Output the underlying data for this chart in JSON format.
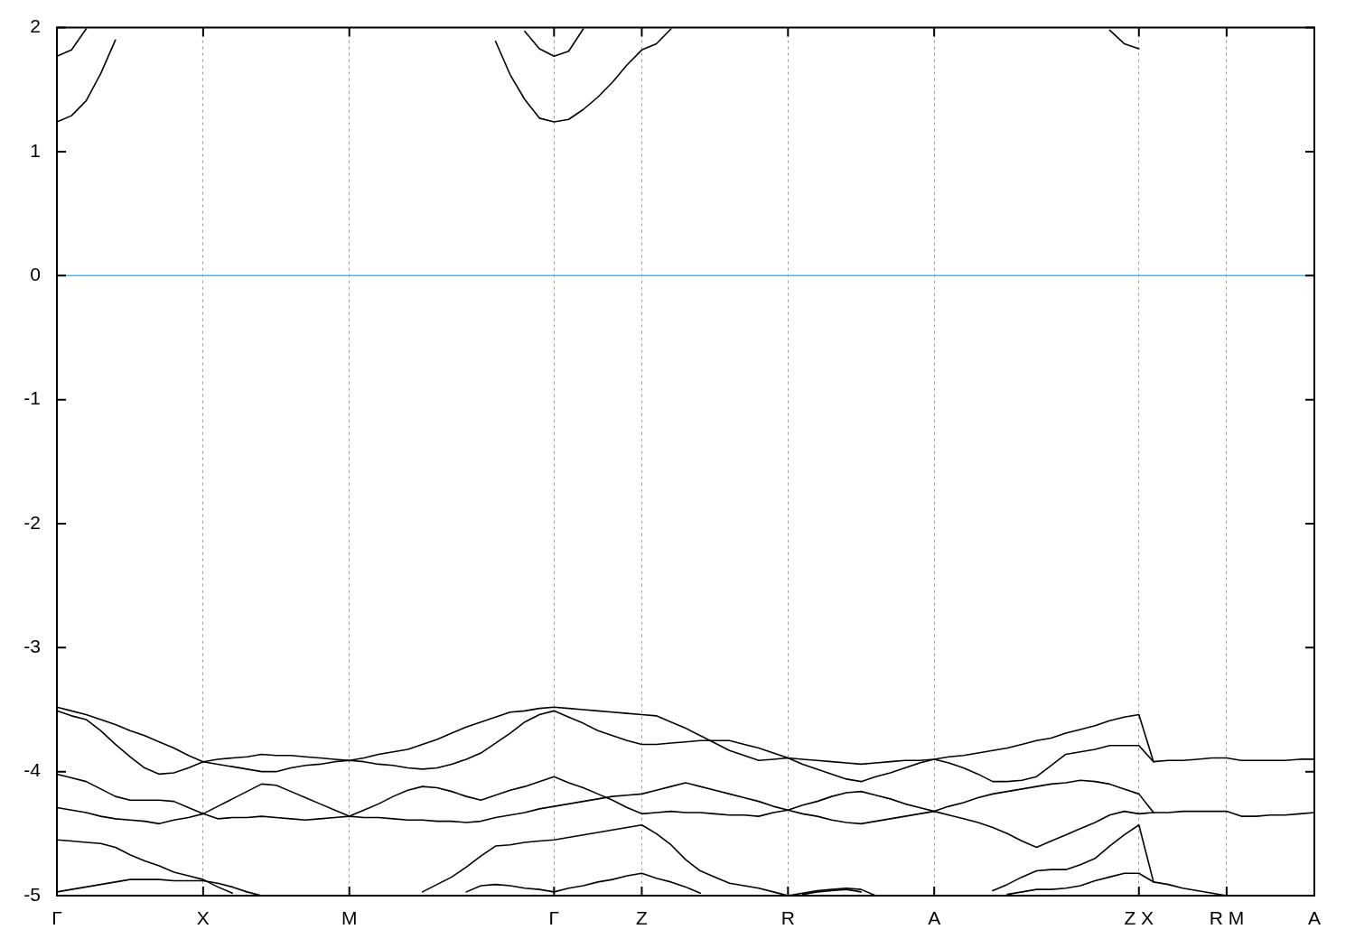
{
  "chart_data": {
    "type": "line",
    "categories": [
      "Γ",
      null,
      null,
      null,
      null,
      null,
      null,
      null,
      null,
      null,
      "X",
      null,
      null,
      null,
      null,
      null,
      null,
      null,
      null,
      null,
      "M",
      null,
      null,
      null,
      null,
      null,
      null,
      null,
      null,
      null,
      null,
      null,
      null,
      null,
      "Γ",
      null,
      null,
      null,
      null,
      null,
      "Z",
      null,
      null,
      null,
      null,
      null,
      null,
      null,
      null,
      null,
      "R",
      null,
      null,
      null,
      null,
      null,
      null,
      null,
      null,
      null,
      "A",
      null,
      null,
      null,
      null,
      null,
      null,
      null,
      null,
      null,
      null,
      null,
      null,
      null,
      "Z X",
      null,
      null,
      null,
      null,
      null,
      "R M",
      null,
      null,
      null,
      null,
      null,
      "A"
    ],
    "ylim": [
      -5,
      2
    ],
    "yticks": [
      -5,
      -4,
      -3,
      -2,
      -1,
      0,
      1,
      2
    ],
    "grid": "x",
    "ref_lines": [
      {
        "axis": "y",
        "value": 0,
        "color": "#56b4e9"
      }
    ],
    "series": [
      {
        "color": "#000000",
        "values": [
          -3.48,
          -3.51,
          -3.54,
          -3.58,
          -3.62,
          -3.67,
          -3.71,
          -3.76,
          -3.81,
          -3.87,
          -3.92,
          -3.94,
          -3.96,
          -3.98,
          -4.0,
          -4.0,
          -3.97,
          -3.95,
          -3.94,
          -3.92,
          -3.91,
          -3.92,
          -3.94,
          -3.95,
          -3.97,
          -3.98,
          -3.97,
          -3.94,
          -3.9,
          -3.85,
          -3.77,
          -3.69,
          -3.6,
          -3.54,
          -3.51,
          -3.56,
          -3.61,
          -3.67,
          -3.71,
          -3.75,
          -3.78,
          -3.78,
          -3.77,
          -3.76,
          -3.75,
          -3.75,
          -3.75,
          -3.78,
          -3.81,
          -3.85,
          -3.89,
          -3.94,
          -3.98,
          -4.02,
          -4.06,
          -4.08,
          -4.04,
          -4.01,
          -3.97,
          -3.93,
          -3.9,
          -3.93,
          -3.97,
          -4.02,
          -4.08,
          -4.08,
          -4.07,
          -4.04,
          -3.95,
          -3.86,
          -3.84,
          -3.82,
          -3.79,
          -3.79,
          -3.79,
          -3.92,
          -3.91,
          -3.91,
          -3.9,
          -3.89,
          -3.89,
          -3.91,
          -3.91,
          -3.91,
          -3.91,
          -3.9,
          -3.9
        ]
      },
      {
        "color": "#000000",
        "values": [
          -3.51,
          -3.55,
          -3.58,
          -3.67,
          -3.78,
          -3.88,
          -3.97,
          -4.02,
          -4.01,
          -3.97,
          -3.92,
          -3.9,
          -3.89,
          -3.88,
          -3.86,
          -3.87,
          -3.87,
          -3.88,
          -3.89,
          -3.9,
          -3.91,
          -3.89,
          -3.86,
          -3.84,
          -3.82,
          -3.78,
          -3.74,
          -3.69,
          -3.64,
          -3.6,
          -3.56,
          -3.52,
          -3.51,
          -3.49,
          -3.48,
          -3.49,
          -3.5,
          -3.51,
          -3.52,
          -3.53,
          -3.54,
          -3.55,
          -3.6,
          -3.65,
          -3.71,
          -3.77,
          -3.83,
          -3.87,
          -3.91,
          -3.9,
          -3.89,
          -3.9,
          -3.91,
          -3.92,
          -3.93,
          -3.94,
          -3.93,
          -3.92,
          -3.91,
          -3.91,
          -3.9,
          -3.88,
          -3.87,
          -3.85,
          -3.83,
          -3.81,
          -3.78,
          -3.75,
          -3.73,
          -3.69,
          -3.66,
          -3.63,
          -3.59,
          -3.56,
          -3.54,
          -3.92,
          null,
          null,
          null,
          null,
          null,
          null,
          null,
          null,
          null,
          null,
          null
        ]
      },
      {
        "color": "#000000",
        "values": [
          -4.02,
          -4.05,
          -4.08,
          -4.14,
          -4.2,
          -4.23,
          -4.23,
          -4.23,
          -4.24,
          -4.29,
          -4.34,
          -4.38,
          -4.37,
          -4.37,
          -4.36,
          -4.37,
          -4.38,
          -4.39,
          -4.38,
          -4.37,
          -4.36,
          -4.31,
          -4.26,
          -4.2,
          -4.15,
          -4.12,
          -4.13,
          -4.16,
          -4.2,
          -4.23,
          -4.19,
          -4.15,
          -4.12,
          -4.08,
          -4.04,
          -4.09,
          -4.13,
          -4.18,
          -4.23,
          -4.29,
          -4.34,
          -4.33,
          -4.32,
          -4.33,
          -4.33,
          -4.34,
          -4.35,
          -4.35,
          -4.36,
          -4.33,
          -4.31,
          -4.34,
          -4.36,
          -4.39,
          -4.41,
          -4.42,
          -4.4,
          -4.38,
          -4.36,
          -4.34,
          -4.32,
          -4.35,
          -4.38,
          -4.41,
          -4.45,
          -4.5,
          -4.56,
          -4.61,
          -4.56,
          -4.51,
          -4.46,
          -4.41,
          -4.35,
          -4.32,
          -4.34,
          -4.33,
          -4.33,
          -4.32,
          -4.32,
          -4.32,
          -4.32,
          -4.36,
          -4.36,
          -4.35,
          -4.35,
          -4.34,
          -4.33
        ]
      },
      {
        "color": "#000000",
        "values": [
          -4.29,
          -4.31,
          -4.33,
          -4.36,
          -4.38,
          -4.39,
          -4.4,
          -4.42,
          -4.39,
          -4.37,
          -4.34,
          -4.28,
          -4.22,
          -4.16,
          -4.1,
          -4.11,
          -4.16,
          -4.21,
          -4.26,
          -4.31,
          -4.36,
          -4.37,
          -4.37,
          -4.38,
          -4.39,
          -4.39,
          -4.4,
          -4.4,
          -4.41,
          -4.4,
          -4.37,
          -4.35,
          -4.33,
          -4.3,
          -4.28,
          -4.26,
          -4.24,
          -4.22,
          -4.2,
          -4.19,
          -4.18,
          -4.15,
          -4.12,
          -4.09,
          -4.12,
          -4.15,
          -4.18,
          -4.21,
          -4.24,
          -4.28,
          -4.31,
          -4.27,
          -4.24,
          -4.2,
          -4.17,
          -4.16,
          -4.19,
          -4.22,
          -4.26,
          -4.29,
          -4.32,
          -4.28,
          -4.25,
          -4.21,
          -4.18,
          -4.16,
          -4.14,
          -4.12,
          -4.1,
          -4.09,
          -4.07,
          -4.08,
          -4.1,
          -4.14,
          -4.18,
          -4.33,
          null,
          null,
          null,
          null,
          null,
          null,
          null,
          null,
          null,
          null,
          null
        ]
      },
      {
        "color": "#000000",
        "values": [
          -4.55,
          -4.56,
          -4.57,
          -4.58,
          -4.61,
          -4.67,
          -4.72,
          -4.76,
          -4.81,
          -4.84,
          -4.87,
          -4.93,
          -4.98,
          null,
          null,
          null,
          null,
          null,
          null,
          null,
          null,
          null,
          null,
          null,
          null,
          null,
          null,
          null,
          null,
          null,
          null,
          null,
          null,
          null,
          null,
          null,
          null,
          null,
          null,
          null,
          null,
          null,
          null,
          null,
          null,
          null,
          null,
          null,
          null,
          null,
          null,
          null,
          null,
          null,
          null,
          null,
          null,
          null,
          null,
          null,
          null,
          null,
          null,
          null,
          null,
          null,
          null,
          null,
          null,
          null,
          null,
          null,
          null,
          null,
          null,
          null,
          null,
          null,
          null,
          null,
          null,
          null,
          null,
          null,
          null,
          null,
          null
        ]
      },
      {
        "color": "#000000",
        "values": [
          -4.97,
          -4.95,
          -4.93,
          -4.91,
          -4.89,
          -4.87,
          -4.87,
          -4.87,
          -4.88,
          -4.88,
          -4.88,
          -4.9,
          -4.93,
          -4.97,
          -5,
          null,
          null,
          null,
          null,
          null,
          null,
          null,
          null,
          null,
          null,
          null,
          null,
          null,
          null,
          null,
          null,
          null,
          null,
          null,
          null,
          null,
          null,
          null,
          null,
          null,
          null,
          null,
          null,
          null,
          null,
          null,
          null,
          null,
          null,
          null,
          null,
          null,
          null,
          null,
          null,
          null,
          null,
          null,
          null,
          null,
          null,
          null,
          null,
          null,
          null,
          null,
          null,
          null,
          null,
          null,
          null,
          null,
          null,
          null,
          null,
          null,
          null,
          null,
          null,
          null,
          null,
          null,
          null,
          null,
          null,
          null,
          null
        ]
      },
      {
        "color": "#000000",
        "values": [
          null,
          null,
          null,
          null,
          null,
          null,
          null,
          null,
          null,
          null,
          null,
          null,
          null,
          null,
          null,
          null,
          null,
          null,
          null,
          null,
          null,
          null,
          null,
          null,
          null,
          -4.97,
          -4.91,
          -4.85,
          -4.77,
          -4.68,
          -4.6,
          -4.59,
          -4.57,
          -4.56,
          -4.55,
          -4.53,
          -4.51,
          -4.49,
          -4.47,
          -4.45,
          -4.43,
          -4.5,
          -4.59,
          -4.71,
          -4.8,
          -4.85,
          -4.9,
          -4.92,
          -4.94,
          -4.97,
          -5,
          -4.98,
          -4.96,
          -4.95,
          -4.94,
          -4.95,
          -5,
          null,
          null,
          null,
          null,
          null,
          null,
          null,
          null,
          null,
          null,
          null,
          null,
          null,
          null,
          null,
          null,
          null,
          null,
          null,
          null,
          null,
          null,
          null,
          null,
          null,
          null,
          null,
          null,
          null,
          null
        ]
      },
      {
        "color": "#000000",
        "values": [
          null,
          null,
          null,
          null,
          null,
          null,
          null,
          null,
          null,
          null,
          null,
          null,
          null,
          null,
          null,
          null,
          null,
          null,
          null,
          null,
          null,
          null,
          null,
          null,
          null,
          null,
          null,
          null,
          -4.97,
          -4.92,
          -4.91,
          -4.92,
          -4.94,
          -4.95,
          -4.97,
          -4.94,
          -4.92,
          -4.89,
          -4.87,
          -4.84,
          -4.82,
          -4.86,
          -4.89,
          -4.93,
          -4.98,
          null,
          null,
          null,
          null,
          null,
          null,
          null,
          null,
          null,
          null,
          null,
          null,
          null,
          null,
          null,
          null,
          null,
          null,
          null,
          null,
          null,
          null,
          null,
          null,
          null,
          null,
          null,
          null,
          null,
          null,
          null,
          null,
          null,
          null,
          null,
          null,
          null,
          null,
          null,
          null,
          null,
          null
        ]
      },
      {
        "color": "#000000",
        "values": [
          null,
          null,
          null,
          null,
          null,
          null,
          null,
          null,
          null,
          null,
          null,
          null,
          null,
          null,
          null,
          null,
          null,
          null,
          null,
          null,
          null,
          null,
          null,
          null,
          null,
          null,
          null,
          null,
          null,
          null,
          null,
          null,
          null,
          null,
          null,
          null,
          null,
          null,
          null,
          null,
          null,
          null,
          null,
          null,
          null,
          null,
          null,
          null,
          null,
          null,
          null,
          -4.99,
          -4.97,
          -4.96,
          -4.95,
          -4.97,
          null,
          null,
          null,
          null,
          null,
          null,
          null,
          null,
          null,
          null,
          null,
          null,
          null,
          null,
          null,
          null,
          null,
          null,
          null,
          null,
          null,
          null,
          null,
          null,
          null,
          null,
          null,
          null,
          null,
          null,
          null
        ]
      },
      {
        "color": "#000000",
        "values": [
          null,
          null,
          null,
          null,
          null,
          null,
          null,
          null,
          null,
          null,
          null,
          null,
          null,
          null,
          null,
          null,
          null,
          null,
          null,
          null,
          null,
          null,
          null,
          null,
          null,
          null,
          null,
          null,
          null,
          null,
          null,
          null,
          null,
          null,
          null,
          null,
          null,
          null,
          null,
          null,
          null,
          null,
          null,
          null,
          null,
          null,
          null,
          null,
          null,
          null,
          null,
          null,
          null,
          null,
          null,
          null,
          null,
          null,
          null,
          null,
          null,
          null,
          null,
          null,
          -4.96,
          -4.91,
          -4.85,
          -4.8,
          -4.79,
          -4.79,
          -4.75,
          -4.7,
          -4.6,
          -4.51,
          -4.43,
          -4.89,
          -4.91,
          -4.94,
          -4.96,
          -4.98,
          -5,
          null,
          null,
          null,
          null,
          null,
          null
        ]
      },
      {
        "color": "#000000",
        "values": [
          null,
          null,
          null,
          null,
          null,
          null,
          null,
          null,
          null,
          null,
          null,
          null,
          null,
          null,
          null,
          null,
          null,
          null,
          null,
          null,
          null,
          null,
          null,
          null,
          null,
          null,
          null,
          null,
          null,
          null,
          null,
          null,
          null,
          null,
          null,
          null,
          null,
          null,
          null,
          null,
          null,
          null,
          null,
          null,
          null,
          null,
          null,
          null,
          null,
          null,
          null,
          null,
          null,
          null,
          null,
          null,
          null,
          null,
          null,
          null,
          null,
          null,
          null,
          null,
          null,
          -4.99,
          -4.97,
          -4.95,
          -4.95,
          -4.94,
          -4.92,
          -4.88,
          -4.85,
          -4.82,
          -4.82,
          -4.89,
          null,
          null,
          null,
          null,
          null,
          null,
          null,
          null,
          null,
          null,
          null
        ]
      },
      {
        "color": "#000000",
        "values": [
          1.24,
          1.29,
          1.41,
          1.63,
          1.9,
          null,
          null,
          null,
          null,
          null,
          null,
          null,
          null,
          null,
          null,
          null,
          null,
          null,
          null,
          null,
          null,
          null,
          null,
          null,
          null,
          null,
          null,
          null,
          null,
          null,
          null,
          null,
          null,
          null,
          null,
          null,
          null,
          null,
          null,
          null,
          null,
          null,
          null,
          null,
          null,
          null,
          null,
          null,
          null,
          null,
          null,
          null,
          null,
          null,
          null,
          null,
          null,
          null,
          null,
          null,
          null,
          null,
          null,
          null,
          null,
          null,
          null,
          null,
          null,
          null,
          null,
          null,
          null,
          null,
          null,
          null,
          null,
          null,
          null,
          null,
          null,
          null,
          null,
          null,
          null,
          null,
          null
        ]
      },
      {
        "color": "#000000",
        "values": [
          1.77,
          1.82,
          1.99,
          null,
          null,
          null,
          null,
          null,
          null,
          null,
          null,
          null,
          null,
          null,
          null,
          null,
          null,
          null,
          null,
          null,
          null,
          null,
          null,
          null,
          null,
          null,
          null,
          null,
          null,
          null,
          null,
          null,
          null,
          null,
          null,
          null,
          null,
          null,
          null,
          null,
          null,
          null,
          null,
          null,
          null,
          null,
          null,
          null,
          null,
          null,
          null,
          null,
          null,
          null,
          null,
          null,
          null,
          null,
          null,
          null,
          null,
          null,
          null,
          null,
          null,
          null,
          null,
          null,
          null,
          null,
          null,
          null,
          null,
          null,
          null,
          null,
          null,
          null,
          null,
          null,
          null,
          null,
          null,
          null,
          null,
          null,
          null
        ]
      },
      {
        "color": "#000000",
        "values": [
          null,
          null,
          null,
          null,
          null,
          null,
          null,
          null,
          null,
          null,
          null,
          null,
          null,
          null,
          null,
          null,
          null,
          null,
          null,
          null,
          null,
          null,
          null,
          null,
          null,
          null,
          null,
          null,
          null,
          null,
          1.89,
          1.62,
          1.42,
          1.27,
          1.24,
          1.26,
          1.34,
          1.44,
          1.56,
          1.7,
          1.82,
          1.87,
          1.99,
          null,
          null,
          null,
          null,
          null,
          null,
          null,
          null,
          null,
          null,
          null,
          null,
          null,
          null,
          null,
          null,
          null,
          null,
          null,
          null,
          null,
          null,
          null,
          null,
          null,
          null,
          null,
          null,
          null,
          null,
          null,
          null,
          null,
          null,
          null,
          null,
          null,
          null,
          null,
          null,
          null,
          null,
          null,
          null
        ]
      },
      {
        "color": "#000000",
        "values": [
          null,
          null,
          null,
          null,
          null,
          null,
          null,
          null,
          null,
          null,
          null,
          null,
          null,
          null,
          null,
          null,
          null,
          null,
          null,
          null,
          null,
          null,
          null,
          null,
          null,
          null,
          null,
          null,
          null,
          null,
          null,
          null,
          1.97,
          1.83,
          1.77,
          1.81,
          1.99,
          null,
          null,
          null,
          null,
          null,
          null,
          null,
          null,
          null,
          null,
          null,
          null,
          null,
          null,
          null,
          null,
          null,
          null,
          null,
          null,
          null,
          null,
          null,
          null,
          null,
          null,
          null,
          null,
          null,
          null,
          null,
          null,
          null,
          null,
          null,
          null,
          null,
          null,
          null,
          null,
          null,
          null,
          null,
          null,
          null,
          null,
          null,
          null,
          null,
          null
        ]
      },
      {
        "color": "#000000",
        "values": [
          null,
          null,
          null,
          null,
          null,
          null,
          null,
          null,
          null,
          null,
          null,
          null,
          null,
          null,
          null,
          null,
          null,
          null,
          null,
          null,
          null,
          null,
          null,
          null,
          null,
          null,
          null,
          null,
          null,
          null,
          null,
          null,
          null,
          null,
          null,
          null,
          null,
          null,
          null,
          null,
          null,
          null,
          null,
          null,
          null,
          null,
          null,
          null,
          null,
          null,
          null,
          null,
          null,
          null,
          null,
          null,
          null,
          null,
          null,
          null,
          null,
          null,
          null,
          null,
          null,
          null,
          null,
          null,
          null,
          null,
          null,
          null,
          1.98,
          1.87,
          1.83,
          null,
          null,
          null,
          null,
          null,
          null,
          null,
          null,
          null,
          null,
          null,
          null
        ]
      }
    ]
  }
}
